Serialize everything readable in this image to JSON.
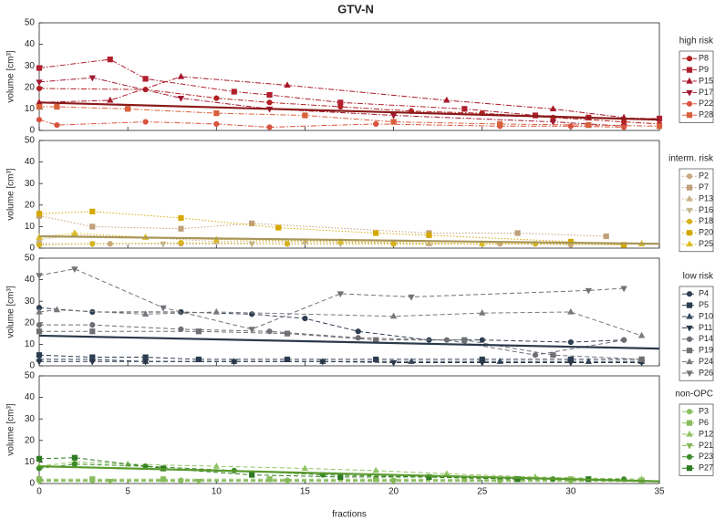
{
  "chart_data": [
    {
      "type": "line",
      "title": "GTV-N",
      "legend_title": "high risk",
      "ylabel": "volume [cm³]",
      "linestyle": "dashdot",
      "ylim": [
        0,
        50
      ],
      "yticks": [
        0,
        10,
        20,
        30,
        40,
        50
      ],
      "trend": {
        "x": [
          0,
          35
        ],
        "values": [
          13,
          5
        ],
        "color": "#8b1a1a"
      },
      "series": [
        {
          "name": "P8",
          "color": "#b22222",
          "marker": "circle",
          "x": [
            0,
            6,
            10,
            13,
            17,
            21,
            25,
            29,
            33,
            35
          ],
          "values": [
            19.5,
            19,
            15,
            13,
            11,
            9,
            8,
            6,
            4,
            3
          ]
        },
        {
          "name": "P9",
          "color": "#b0202e",
          "marker": "square",
          "x": [
            0,
            4,
            6,
            11,
            13,
            17,
            24,
            28,
            31,
            35
          ],
          "values": [
            29,
            33,
            24,
            18,
            16.5,
            13,
            10,
            7,
            6,
            5.5
          ]
        },
        {
          "name": "P15",
          "color": "#a8182a",
          "marker": "triangle",
          "x": [
            0,
            4,
            8,
            14,
            23,
            29,
            33
          ],
          "values": [
            13,
            14,
            25,
            21,
            14,
            10,
            6
          ]
        },
        {
          "name": "P17",
          "color": "#a01830",
          "marker": "triangle-down",
          "x": [
            0,
            3,
            8,
            13,
            20,
            29,
            33
          ],
          "values": [
            22.5,
            24.5,
            15,
            10,
            7,
            4,
            2
          ]
        },
        {
          "name": "P22",
          "color": "#d9533f",
          "marker": "circle",
          "x": [
            0,
            1,
            6,
            10,
            13,
            19,
            26,
            30,
            33
          ],
          "values": [
            5,
            2.5,
            4,
            3,
            1.5,
            3,
            2,
            2,
            1.5
          ]
        },
        {
          "name": "P28",
          "color": "#d8603c",
          "marker": "square",
          "x": [
            0,
            1,
            5,
            10,
            15,
            20,
            26,
            31,
            35
          ],
          "values": [
            11,
            11,
            10,
            8,
            7,
            4,
            3,
            2.5,
            2
          ]
        }
      ]
    },
    {
      "type": "line",
      "legend_title": "interm. risk",
      "ylabel": "volume [cm³]",
      "linestyle": "dotted",
      "ylim": [
        0,
        50
      ],
      "yticks": [
        0,
        10,
        20,
        30,
        40,
        50
      ],
      "trend": {
        "x": [
          0,
          35
        ],
        "values": [
          5.5,
          2
        ],
        "color": "#a8955a"
      },
      "series": [
        {
          "name": "P2",
          "color": "#c8a882",
          "marker": "circle",
          "x": [
            0,
            4,
            8,
            14,
            20,
            26,
            30
          ],
          "values": [
            2,
            2,
            2,
            2,
            2,
            2,
            1.5
          ]
        },
        {
          "name": "P7",
          "color": "#c0a07a",
          "marker": "square",
          "x": [
            0,
            3,
            8,
            12,
            22,
            27,
            32
          ],
          "values": [
            15,
            10,
            9,
            11.5,
            7,
            7,
            5.5
          ]
        },
        {
          "name": "P13",
          "color": "#c8b088",
          "marker": "triangle",
          "x": [
            0,
            2,
            6,
            10,
            15,
            22,
            34
          ],
          "values": [
            4,
            6,
            5,
            3,
            3,
            2,
            2
          ]
        },
        {
          "name": "P16",
          "color": "#c4b896",
          "marker": "triangle-down",
          "x": [
            0,
            3,
            7,
            12,
            17,
            25,
            33
          ],
          "values": [
            2,
            2,
            2,
            2,
            2,
            2,
            1.5
          ]
        },
        {
          "name": "P18",
          "color": "#d6b21e",
          "marker": "circle",
          "x": [
            0,
            3,
            8,
            14,
            20,
            28,
            33
          ],
          "values": [
            1.5,
            2,
            2.5,
            2,
            2,
            2,
            1.5
          ]
        },
        {
          "name": "P20",
          "color": "#d4a800",
          "marker": "square",
          "x": [
            0,
            3,
            8,
            13.5,
            19,
            22,
            30,
            33
          ],
          "values": [
            16,
            17,
            14,
            9.5,
            7,
            6,
            3,
            1.5
          ]
        },
        {
          "name": "P25",
          "color": "#dcbc20",
          "marker": "triangle",
          "x": [
            0,
            2,
            6,
            10,
            17,
            25,
            34
          ],
          "values": [
            5,
            7,
            5,
            4,
            3,
            2,
            2
          ]
        }
      ]
    },
    {
      "type": "line",
      "legend_title": "low risk",
      "ylabel": "volume [cm³]",
      "linestyle": "dashed",
      "ylim": [
        0,
        50
      ],
      "yticks": [
        0,
        10,
        20,
        30,
        40,
        50
      ],
      "trend": {
        "x": [
          0,
          35
        ],
        "values": [
          14,
          8
        ],
        "color": "#2b3a4a"
      },
      "series": [
        {
          "name": "P4",
          "color": "#2f3f52",
          "marker": "circle",
          "x": [
            0,
            3,
            8,
            12,
            15,
            18,
            22,
            25,
            30,
            33
          ],
          "values": [
            27,
            25,
            25,
            24,
            22,
            16,
            12,
            12,
            11,
            12
          ]
        },
        {
          "name": "P5",
          "color": "#2c3c50",
          "marker": "square",
          "x": [
            0,
            3,
            6,
            9,
            14,
            19,
            25,
            30,
            34
          ],
          "values": [
            5,
            4,
            4,
            3,
            3,
            3,
            3,
            3,
            3
          ]
        },
        {
          "name": "P10",
          "color": "#34465a",
          "marker": "triangle",
          "x": [
            0,
            3,
            6,
            11,
            16,
            21,
            26,
            31,
            34
          ],
          "values": [
            3,
            3,
            2,
            2,
            2,
            2,
            2,
            2,
            2
          ]
        },
        {
          "name": "P11",
          "color": "#2a3848",
          "marker": "triangle-down",
          "x": [
            0,
            3,
            6,
            11,
            16,
            20,
            25,
            30,
            34
          ],
          "values": [
            2,
            2,
            2,
            2,
            2,
            1.5,
            1.5,
            1.5,
            1.5
          ]
        },
        {
          "name": "P14",
          "color": "#6e6e74",
          "marker": "circle",
          "x": [
            0,
            3,
            8,
            13,
            18,
            23,
            28,
            33
          ],
          "values": [
            19,
            19,
            17,
            16,
            13,
            12,
            5,
            12
          ]
        },
        {
          "name": "P19",
          "color": "#707074",
          "marker": "square",
          "x": [
            0,
            3,
            9,
            14,
            19,
            24,
            29,
            34
          ],
          "values": [
            16,
            16,
            16,
            15,
            12,
            12,
            5,
            3
          ]
        },
        {
          "name": "P24",
          "color": "#78787c",
          "marker": "triangle",
          "x": [
            0,
            1,
            6,
            10,
            20,
            25,
            30,
            34
          ],
          "values": [
            25,
            26,
            24,
            25,
            23,
            24.5,
            25,
            14
          ]
        },
        {
          "name": "P26",
          "color": "#727276",
          "marker": "triangle-down",
          "x": [
            0,
            2,
            7,
            12,
            17,
            21,
            31,
            33
          ],
          "values": [
            42,
            45,
            27,
            17,
            33.5,
            32,
            35,
            36
          ]
        }
      ]
    },
    {
      "type": "line",
      "legend_title": "non-OPC",
      "ylabel": "volume [cm³]",
      "xlabel": "fractions",
      "linestyle": "dashed",
      "ylim": [
        0,
        50
      ],
      "yticks": [
        0,
        10,
        20,
        30,
        40,
        50
      ],
      "xlim": [
        0,
        35
      ],
      "xticks": [
        0,
        5,
        10,
        15,
        20,
        25,
        30,
        35
      ],
      "trend": {
        "x": [
          0,
          35
        ],
        "values": [
          8,
          1
        ],
        "color": "#5a9a2e"
      },
      "series": [
        {
          "name": "P3",
          "color": "#8cc060",
          "marker": "circle",
          "x": [
            0,
            3,
            8,
            14,
            20,
            26,
            30,
            34
          ],
          "values": [
            1.5,
            1.5,
            1.5,
            1.5,
            1.5,
            1.5,
            1.5,
            1.5
          ]
        },
        {
          "name": "P6",
          "color": "#88bc5c",
          "marker": "square",
          "x": [
            0,
            3,
            7,
            13,
            19,
            24,
            30,
            34
          ],
          "values": [
            2,
            2,
            2,
            2,
            2,
            2,
            2,
            1.5
          ]
        },
        {
          "name": "P12",
          "color": "#90c464",
          "marker": "triangle",
          "x": [
            0,
            2,
            5,
            10,
            15,
            19,
            23,
            28,
            34
          ],
          "values": [
            8,
            10,
            9,
            8,
            7,
            6,
            4.5,
            3,
            2
          ]
        },
        {
          "name": "P21",
          "color": "#84b858",
          "marker": "triangle-down",
          "x": [
            0,
            4,
            9,
            14,
            20,
            26,
            30,
            34
          ],
          "values": [
            1,
            1,
            1,
            1,
            1,
            1,
            1,
            1
          ]
        },
        {
          "name": "P23",
          "color": "#3c8a28",
          "marker": "circle",
          "x": [
            0,
            2,
            6,
            11,
            16,
            22,
            29,
            33
          ],
          "values": [
            7,
            9,
            8,
            6,
            4,
            3,
            2,
            2
          ]
        },
        {
          "name": "P27",
          "color": "#2e7a22",
          "marker": "square",
          "x": [
            0,
            2,
            7,
            12,
            17,
            22,
            27,
            31
          ],
          "values": [
            11.5,
            12,
            7,
            4,
            3,
            3,
            2,
            2
          ]
        }
      ]
    }
  ]
}
